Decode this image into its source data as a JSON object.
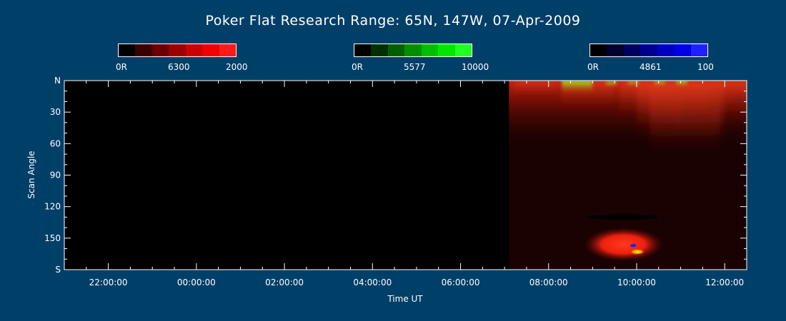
{
  "title": "Poker Flat Research Range: 65N, 147W, 07-Apr-2009",
  "colorbars": [
    {
      "name": "red",
      "labels": [
        "0R",
        "6300",
        "2000"
      ],
      "colors": [
        "#000000",
        "#3a0000",
        "#6a0000",
        "#9c0000",
        "#cc0000",
        "#f00000",
        "#ff1a1a"
      ]
    },
    {
      "name": "green",
      "labels": [
        "0R",
        "5577",
        "10000"
      ],
      "colors": [
        "#000000",
        "#003000",
        "#006000",
        "#008f00",
        "#00bf00",
        "#00e600",
        "#20ff20"
      ]
    },
    {
      "name": "blue",
      "labels": [
        "0R",
        "4861",
        "100"
      ],
      "colors": [
        "#000000",
        "#000030",
        "#000060",
        "#00008f",
        "#0000bf",
        "#0000e6",
        "#2020ff"
      ]
    }
  ],
  "chart_data": {
    "type": "heatmap",
    "title": "Poker Flat Research Range: 65N, 147W, 07-Apr-2009",
    "xlabel": "Time UT",
    "ylabel": "Scan Angle",
    "x_ticks": [
      "22:00:00",
      "00:00:00",
      "02:00:00",
      "04:00:00",
      "06:00:00",
      "08:00:00",
      "10:00:00",
      "12:00:00"
    ],
    "y_ticks": [
      "N",
      "30",
      "60",
      "90",
      "120",
      "150",
      "S"
    ],
    "x_range_hours_ut": [
      21,
      36.5
    ],
    "y_range_deg": [
      0,
      180
    ],
    "data_start_hours_ut": 31.1,
    "features": [
      {
        "label": "red 6300 emission band near N horizon",
        "x_hours": [
          31.1,
          36.5
        ],
        "y_deg": [
          0,
          30
        ]
      },
      {
        "label": "green 5577 arc near N",
        "x_hours": [
          32.3,
          33.0
        ],
        "y_deg": [
          0,
          12
        ]
      },
      {
        "label": "bright red patch near S",
        "x_hours": [
          32.8,
          34.6
        ],
        "y_deg": [
          140,
          172
        ]
      }
    ]
  }
}
